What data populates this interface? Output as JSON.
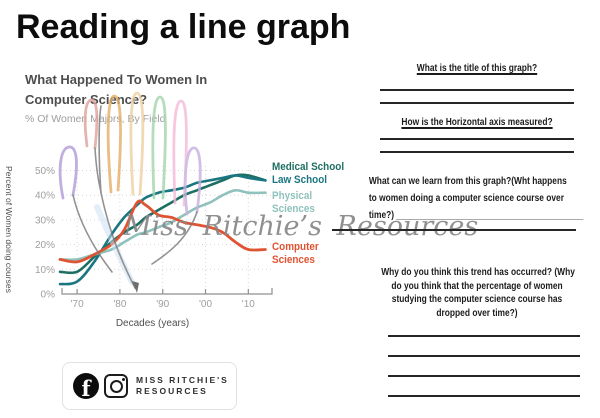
{
  "page_title": "Reading a line graph",
  "chart": {
    "title_line1": "What Happened To Women In",
    "title_line2": "Computer Science?",
    "subtitle": "% Of Women Majors, By Field",
    "y_axis_label": "Percent of Women doing courses",
    "x_axis_label": "Decades (years)",
    "legend": [
      {
        "label": "Medical School",
        "color": "#1e6f63"
      },
      {
        "label": "Law School",
        "color": "#1a7680"
      },
      {
        "label": "Physical Sciences",
        "color": "#8fc2bc"
      },
      {
        "label": "Computer Sciences",
        "color": "#e05332"
      }
    ]
  },
  "chart_data": {
    "type": "line",
    "title": "What Happened To Women In Computer Science?",
    "subtitle": "% Of Women Majors, By Field",
    "xlabel": "Decades (years)",
    "ylabel": "Percent of Women doing courses",
    "ylim": [
      0,
      55
    ],
    "yticks": [
      "0%",
      "10%",
      "20%",
      "30%",
      "40%",
      "50%"
    ],
    "xticks": [
      "'70",
      "'80",
      "'90",
      "'00",
      "'10"
    ],
    "xtick_years": [
      1970,
      1980,
      1990,
      2000,
      2010
    ],
    "grid": "dotted",
    "legend_position": "right",
    "x": [
      1966,
      1970,
      1974,
      1978,
      1981,
      1984,
      1986,
      1989,
      1992,
      1995,
      1998,
      2001,
      2004,
      2007,
      2010,
      2014
    ],
    "series": [
      {
        "name": "Medical School",
        "color": "#1e6f63",
        "values": [
          9,
          9,
          15,
          21,
          25,
          28,
          31,
          34,
          37,
          40,
          42,
          44,
          46,
          48,
          48,
          46
        ]
      },
      {
        "name": "Law School",
        "color": "#1a7680",
        "values": [
          4,
          5,
          13,
          24,
          31,
          36,
          39,
          41,
          42,
          43,
          45,
          46,
          47,
          48,
          47,
          46
        ]
      },
      {
        "name": "Physical Sciences",
        "color": "#8fc2bc",
        "values": [
          14,
          14,
          16,
          18,
          21,
          24,
          25,
          27,
          29,
          32,
          35,
          37,
          40,
          42,
          41,
          41
        ]
      },
      {
        "name": "Computer Sciences",
        "color": "#e05332",
        "values": [
          14,
          13,
          16,
          20,
          26,
          37,
          36,
          32,
          31,
          29,
          28,
          27,
          25,
          21,
          18,
          18
        ]
      }
    ]
  },
  "watermark": "Miss Ritchie’s Resources",
  "questions": {
    "q1": "What is the title of this graph?",
    "q2": "How is the Horizontal axis measured?",
    "q3_lines": [
      "What can we learn from this graph?(Wht happens",
      "to women doing a computer science course over",
      "time?) ________________________________________"
    ],
    "q4_lines": [
      "Why do you think this trend has occurred? (Why",
      "do you think that the percentage of women",
      "studying the computer science course has",
      "dropped over time?)"
    ]
  },
  "footer": {
    "brand_line1": "MISS RITCHIE'S",
    "brand_line2": "RESOURCES",
    "facebook_glyph": "f"
  },
  "icons": {
    "facebook_icon": "facebook-circle",
    "instagram_icon": "instagram-outline"
  }
}
